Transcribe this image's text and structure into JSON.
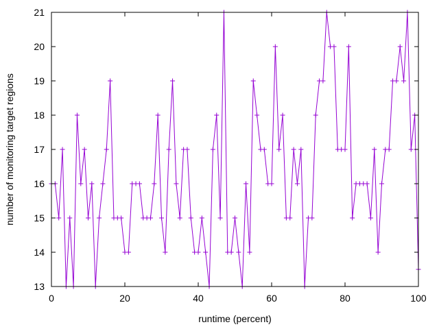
{
  "chart_data": {
    "type": "line",
    "title": "",
    "xlabel": "runtime (percent)",
    "ylabel": "number of monitoring target regions",
    "xlim": [
      0,
      100
    ],
    "ylim": [
      13,
      21
    ],
    "xticks": [
      0,
      20,
      40,
      60,
      80,
      100
    ],
    "yticks": [
      13,
      14,
      15,
      16,
      17,
      18,
      19,
      20,
      21
    ],
    "grid": false,
    "legend": "none",
    "marker": "plus",
    "series": [
      {
        "color": "#9400d3",
        "x": [
          0,
          1,
          2,
          3,
          4,
          5,
          6,
          7,
          8,
          9,
          10,
          11,
          12,
          13,
          14,
          15,
          16,
          17,
          18,
          19,
          20,
          21,
          22,
          23,
          24,
          25,
          26,
          27,
          28,
          29,
          30,
          31,
          32,
          33,
          34,
          35,
          36,
          37,
          38,
          39,
          40,
          41,
          42,
          43,
          44,
          45,
          46,
          47,
          48,
          49,
          50,
          51,
          52,
          53,
          54,
          55,
          56,
          57,
          58,
          59,
          60,
          61,
          62,
          63,
          64,
          65,
          66,
          67,
          68,
          69,
          70,
          71,
          72,
          73,
          74,
          75,
          76,
          77,
          78,
          79,
          80,
          81,
          82,
          83,
          84,
          85,
          86,
          87,
          88,
          89,
          90,
          91,
          92,
          93,
          94,
          95,
          96,
          97,
          98,
          99,
          100
        ],
        "y": [
          16,
          16,
          15,
          17,
          13,
          15,
          13,
          18,
          16,
          17,
          15,
          16,
          13,
          15,
          16,
          17,
          19,
          15,
          15,
          15,
          14,
          14,
          16,
          16,
          16,
          15,
          15,
          15,
          16,
          18,
          15,
          14,
          17,
          19,
          16,
          15,
          17,
          17,
          15,
          14,
          14,
          15,
          14,
          13,
          17,
          18,
          15,
          21,
          14,
          14,
          15,
          14,
          13,
          16,
          14,
          19,
          18,
          17,
          17,
          16,
          16,
          20,
          17,
          18,
          15,
          15,
          17,
          16,
          17,
          13,
          15,
          15,
          18,
          19,
          19,
          21,
          20,
          20,
          17,
          17,
          17,
          20,
          15,
          16,
          16,
          16,
          16,
          15,
          17,
          14,
          16,
          17,
          17,
          19,
          19,
          20,
          19,
          21,
          17,
          18,
          13.5
        ]
      }
    ]
  }
}
